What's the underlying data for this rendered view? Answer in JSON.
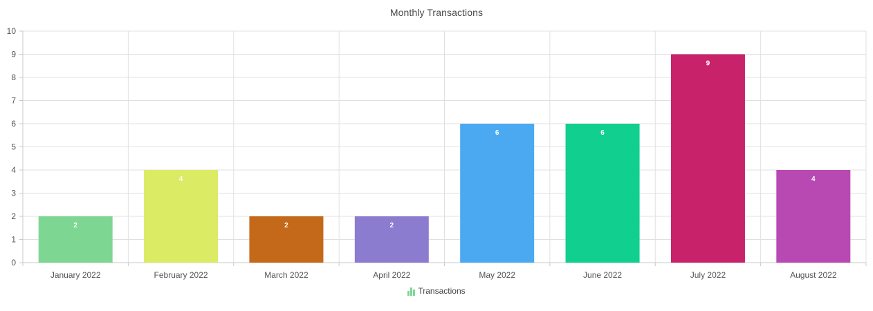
{
  "chart_data": {
    "type": "bar",
    "title": "Monthly Transactions",
    "categories": [
      "January 2022",
      "February 2022",
      "March 2022",
      "April 2022",
      "May 2022",
      "June 2022",
      "July 2022",
      "August 2022"
    ],
    "series": [
      {
        "name": "Transactions",
        "values": [
          2,
          4,
          2,
          2,
          6,
          6,
          9,
          4
        ]
      }
    ],
    "bar_colors": [
      "#7ed693",
      "#dbeb63",
      "#c4691a",
      "#8c7ccf",
      "#4ba9f2",
      "#10cf8f",
      "#c7226a",
      "#b849b3"
    ],
    "ylim": [
      0,
      10
    ],
    "y_ticks": [
      0,
      1,
      2,
      3,
      4,
      5,
      6,
      7,
      8,
      9,
      10
    ],
    "grid": true,
    "legend_position": "bottom",
    "legend_color": "#7ed693"
  }
}
